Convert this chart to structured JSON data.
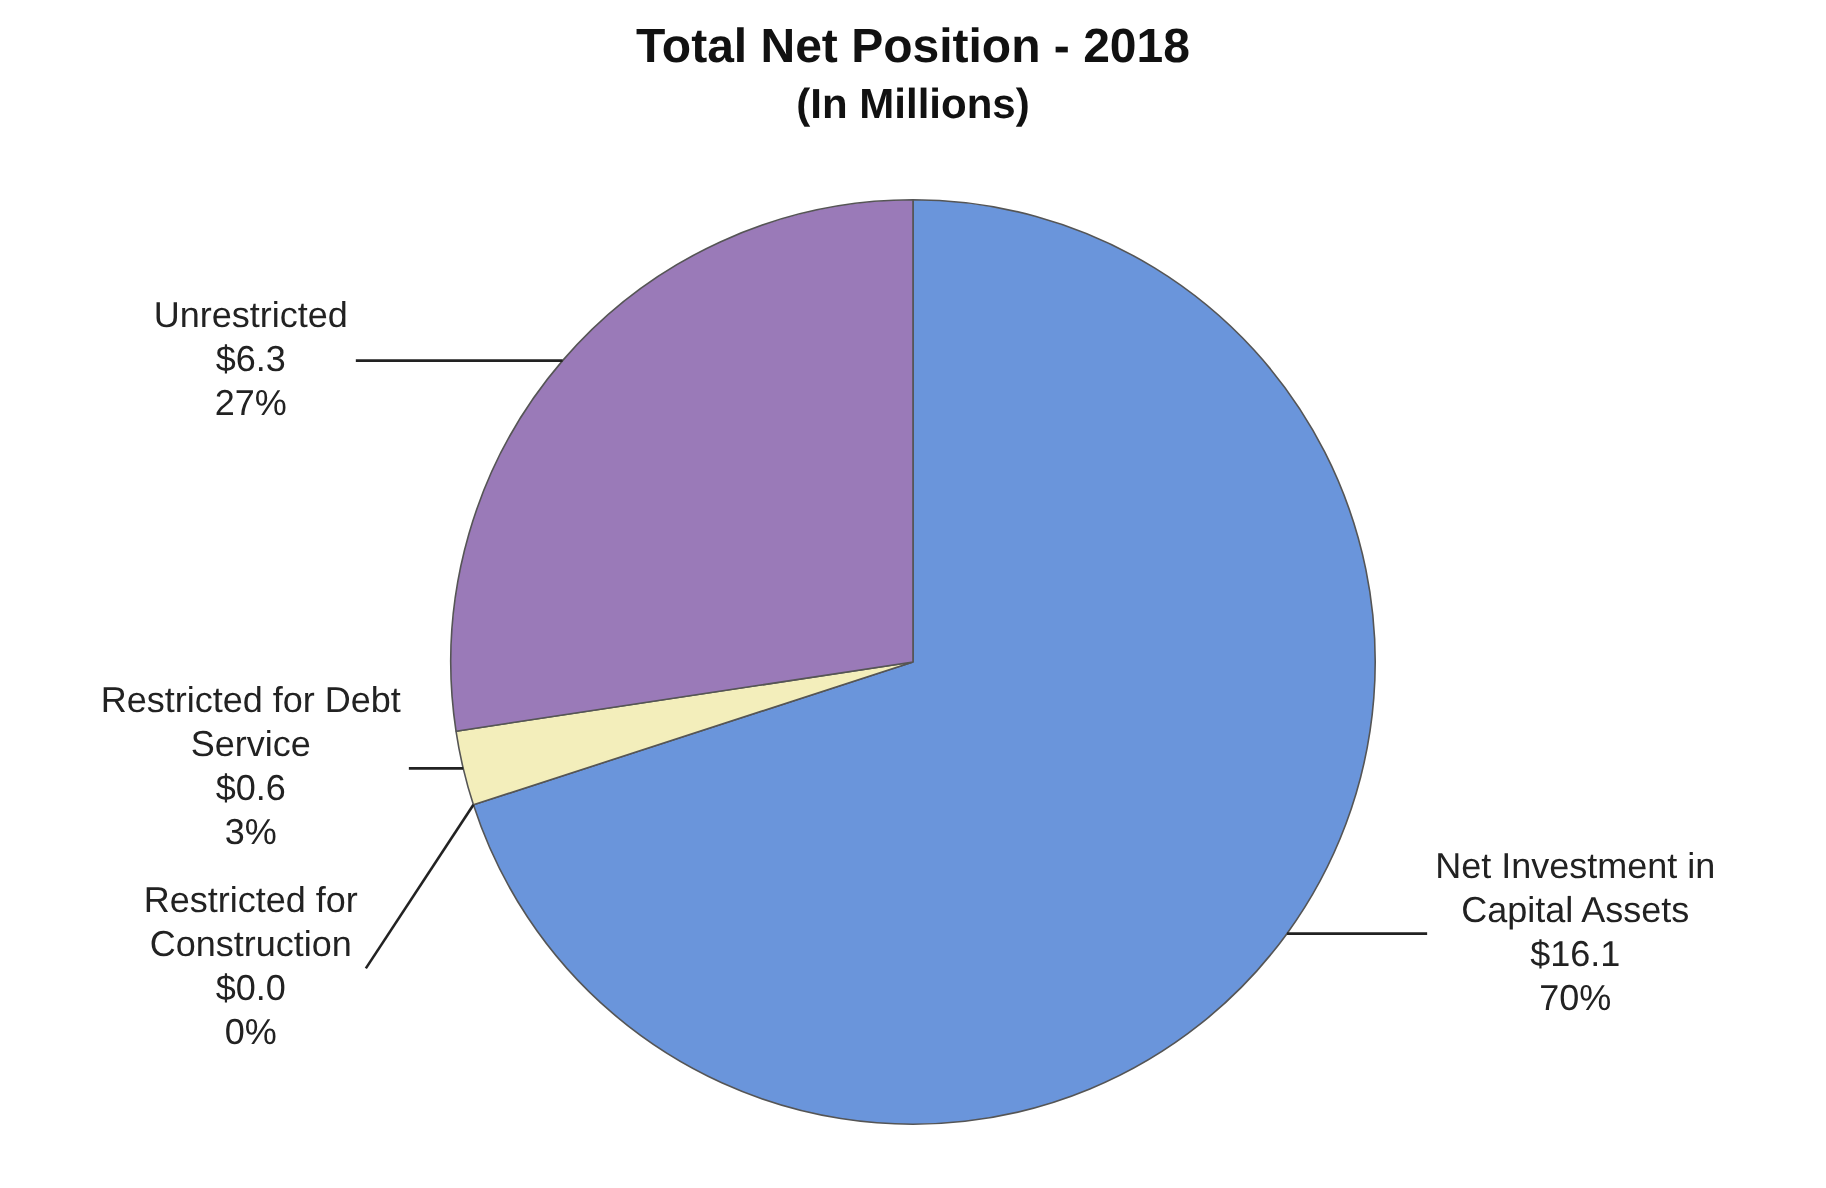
{
  "chart_data": {
    "type": "pie",
    "title": "Total Net Position - 2018",
    "subtitle": "(In Millions)",
    "categories": [
      "Net Investment in Capital Assets",
      "Restricted for Construction",
      "Restricted for Debt Service",
      "Unrestricted"
    ],
    "values": [
      16.1,
      0.0,
      0.6,
      6.3
    ],
    "colors": [
      "#6a95db",
      "#f5f2c6",
      "#f3eebb",
      "#9a7ab8"
    ],
    "value_labels": [
      "$16.1\n70%",
      "$0.0\n0%",
      "$0.6\n3%",
      "$6.3\n27%"
    ],
    "legend": false
  }
}
